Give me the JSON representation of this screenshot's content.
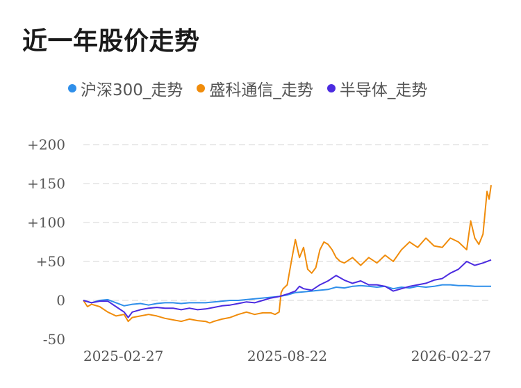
{
  "page": {
    "title": "近一年股价走势"
  },
  "chart_data": {
    "type": "line",
    "title": "近一年股价走势",
    "xlabel": "",
    "ylabel": "",
    "ylim": [
      -50,
      200
    ],
    "yticks": [
      -50,
      0,
      50,
      100,
      150,
      200
    ],
    "ytick_labels": [
      "-50",
      "0",
      "+50",
      "+100",
      "+150",
      "+200"
    ],
    "xticks": [
      "2025-02-27",
      "2025-08-22",
      "2026-02-27"
    ],
    "x_range": [
      0,
      100
    ],
    "xtick_positions": [
      0,
      50,
      100
    ],
    "grid": true,
    "legend_position": "top",
    "series": [
      {
        "name": "沪深300_走势",
        "color": "#2f8fea",
        "points": [
          [
            0,
            0
          ],
          [
            2,
            -3
          ],
          [
            4,
            0
          ],
          [
            6,
            1
          ],
          [
            8,
            -3
          ],
          [
            10,
            -7
          ],
          [
            12,
            -5
          ],
          [
            14,
            -4
          ],
          [
            16,
            -6
          ],
          [
            18,
            -4
          ],
          [
            20,
            -3
          ],
          [
            22,
            -3
          ],
          [
            24,
            -4
          ],
          [
            26,
            -3
          ],
          [
            28,
            -3
          ],
          [
            30,
            -3
          ],
          [
            32,
            -2
          ],
          [
            34,
            -1
          ],
          [
            36,
            0
          ],
          [
            38,
            0
          ],
          [
            40,
            1
          ],
          [
            42,
            2
          ],
          [
            44,
            3
          ],
          [
            46,
            4
          ],
          [
            48,
            5
          ],
          [
            50,
            7
          ],
          [
            52,
            10
          ],
          [
            54,
            11
          ],
          [
            56,
            12
          ],
          [
            58,
            13
          ],
          [
            60,
            14
          ],
          [
            62,
            17
          ],
          [
            64,
            16
          ],
          [
            66,
            18
          ],
          [
            68,
            19
          ],
          [
            70,
            18
          ],
          [
            72,
            17
          ],
          [
            74,
            18
          ],
          [
            76,
            15
          ],
          [
            78,
            17
          ],
          [
            80,
            16
          ],
          [
            82,
            18
          ],
          [
            84,
            17
          ],
          [
            86,
            18
          ],
          [
            88,
            20
          ],
          [
            90,
            20
          ],
          [
            92,
            19
          ],
          [
            94,
            19
          ],
          [
            96,
            18
          ],
          [
            98,
            18
          ],
          [
            100,
            18
          ]
        ]
      },
      {
        "name": "盛科通信_走势",
        "color": "#f08c0b",
        "points": [
          [
            0,
            0
          ],
          [
            1,
            -8
          ],
          [
            2,
            -5
          ],
          [
            4,
            -8
          ],
          [
            6,
            -15
          ],
          [
            8,
            -20
          ],
          [
            10,
            -18
          ],
          [
            11,
            -27
          ],
          [
            12,
            -22
          ],
          [
            14,
            -20
          ],
          [
            16,
            -18
          ],
          [
            18,
            -20
          ],
          [
            20,
            -23
          ],
          [
            22,
            -25
          ],
          [
            24,
            -27
          ],
          [
            26,
            -24
          ],
          [
            28,
            -26
          ],
          [
            30,
            -27
          ],
          [
            31,
            -29
          ],
          [
            32,
            -27
          ],
          [
            34,
            -24
          ],
          [
            36,
            -22
          ],
          [
            38,
            -18
          ],
          [
            40,
            -15
          ],
          [
            42,
            -18
          ],
          [
            44,
            -16
          ],
          [
            46,
            -16
          ],
          [
            47,
            -18
          ],
          [
            48,
            -15
          ],
          [
            48.5,
            10
          ],
          [
            49,
            15
          ],
          [
            50,
            20
          ],
          [
            51,
            50
          ],
          [
            52,
            78
          ],
          [
            53,
            55
          ],
          [
            54,
            68
          ],
          [
            55,
            40
          ],
          [
            56,
            35
          ],
          [
            57,
            42
          ],
          [
            58,
            65
          ],
          [
            59,
            75
          ],
          [
            60,
            72
          ],
          [
            61,
            65
          ],
          [
            62,
            55
          ],
          [
            63,
            50
          ],
          [
            64,
            48
          ],
          [
            66,
            55
          ],
          [
            68,
            45
          ],
          [
            70,
            55
          ],
          [
            72,
            48
          ],
          [
            74,
            58
          ],
          [
            76,
            50
          ],
          [
            78,
            65
          ],
          [
            80,
            75
          ],
          [
            82,
            68
          ],
          [
            84,
            80
          ],
          [
            86,
            70
          ],
          [
            88,
            68
          ],
          [
            90,
            80
          ],
          [
            92,
            75
          ],
          [
            94,
            65
          ],
          [
            95,
            102
          ],
          [
            96,
            80
          ],
          [
            97,
            72
          ],
          [
            98,
            85
          ],
          [
            99,
            140
          ],
          [
            99.5,
            130
          ],
          [
            100,
            148
          ]
        ]
      },
      {
        "name": "半导体_走势",
        "color": "#4b2be0",
        "points": [
          [
            0,
            0
          ],
          [
            2,
            -3
          ],
          [
            4,
            -1
          ],
          [
            6,
            -1
          ],
          [
            8,
            -8
          ],
          [
            10,
            -15
          ],
          [
            11,
            -22
          ],
          [
            12,
            -15
          ],
          [
            14,
            -12
          ],
          [
            16,
            -10
          ],
          [
            18,
            -9
          ],
          [
            20,
            -10
          ],
          [
            22,
            -10
          ],
          [
            24,
            -12
          ],
          [
            26,
            -10
          ],
          [
            28,
            -12
          ],
          [
            30,
            -11
          ],
          [
            32,
            -9
          ],
          [
            34,
            -7
          ],
          [
            36,
            -6
          ],
          [
            38,
            -4
          ],
          [
            40,
            -2
          ],
          [
            42,
            -3
          ],
          [
            44,
            0
          ],
          [
            46,
            3
          ],
          [
            48,
            5
          ],
          [
            50,
            8
          ],
          [
            52,
            12
          ],
          [
            53,
            18
          ],
          [
            54,
            15
          ],
          [
            56,
            13
          ],
          [
            58,
            20
          ],
          [
            60,
            25
          ],
          [
            62,
            32
          ],
          [
            64,
            26
          ],
          [
            66,
            22
          ],
          [
            68,
            25
          ],
          [
            70,
            20
          ],
          [
            72,
            20
          ],
          [
            74,
            18
          ],
          [
            76,
            12
          ],
          [
            78,
            15
          ],
          [
            80,
            18
          ],
          [
            82,
            20
          ],
          [
            84,
            22
          ],
          [
            86,
            26
          ],
          [
            88,
            28
          ],
          [
            90,
            35
          ],
          [
            92,
            40
          ],
          [
            94,
            50
          ],
          [
            96,
            45
          ],
          [
            98,
            48
          ],
          [
            100,
            52
          ]
        ]
      }
    ]
  }
}
